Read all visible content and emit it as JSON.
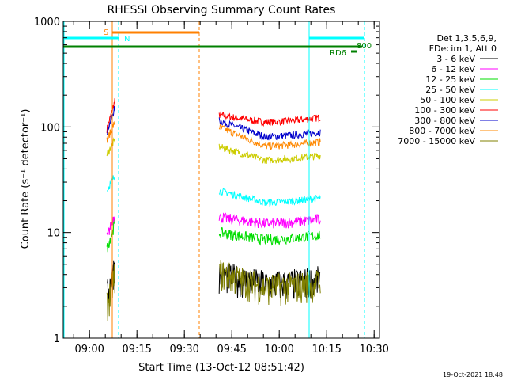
{
  "chart_data": {
    "type": "line",
    "title": "RHESSI Observing Summary Count Rates",
    "xlabel": "Start Time (13-Oct-12 08:51:42)",
    "ylabel": "Count Rate (s⁻¹ detector⁻¹)",
    "yscale": "log",
    "ylim": [
      1,
      1000
    ],
    "xlim": [
      "08:51:42",
      "10:31:42"
    ],
    "x_ticks": [
      "09:00",
      "09:15",
      "09:30",
      "09:45",
      "10:00",
      "10:15",
      "10:30"
    ],
    "y_ticks": [
      "1",
      "10",
      "100",
      "1000"
    ],
    "footer_date": "19-Oct-2021 18:48",
    "legend": {
      "header": [
        "Det 1,3,5,6,9,",
        "FDecim 1, Att 0"
      ],
      "entries": [
        {
          "label": "3 - 6 keV",
          "color": "#000000"
        },
        {
          "label": "6 - 12 keV",
          "color": "#ff00ff"
        },
        {
          "label": "12 - 25 keV",
          "color": "#00dd00"
        },
        {
          "label": "25 - 50 keV",
          "color": "#00ffff"
        },
        {
          "label": "50 - 100 keV",
          "color": "#cccc00"
        },
        {
          "label": "100 - 300 keV",
          "color": "#ff0000"
        },
        {
          "label": "300 - 800 keV",
          "color": "#0000cc"
        },
        {
          "label": "800 - 7000 keV",
          "color": "#ff8800"
        },
        {
          "label": "7000 - 15000 keV",
          "color": "#808000"
        }
      ]
    },
    "flags": [
      {
        "label": "S",
        "color": "#ff8000"
      },
      {
        "label": "N",
        "color": "#00ffff"
      },
      {
        "label": "800",
        "color": "#008000"
      },
      {
        "label": "RD6",
        "color": "#008000"
      }
    ],
    "segments": [
      {
        "start": "09:05:30",
        "end": "09:08:00"
      },
      {
        "start": "09:41:00",
        "end": "10:13:00"
      }
    ],
    "series": [
      {
        "color": "#ff0000",
        "values": [
          [
            95,
            175
          ],
          [
            130,
            110
          ]
        ]
      },
      {
        "color": "#0000cc",
        "values": [
          [
            90,
            150
          ],
          [
            115,
            80
          ]
        ]
      },
      {
        "color": "#ff8800",
        "values": [
          [
            75,
            110
          ],
          [
            100,
            65
          ]
        ]
      },
      {
        "color": "#cccc00",
        "values": [
          [
            55,
            75
          ],
          [
            65,
            48
          ]
        ]
      },
      {
        "color": "#00ffff",
        "values": [
          [
            25,
            35
          ],
          [
            25,
            19
          ]
        ]
      },
      {
        "color": "#ff00ff",
        "values": [
          [
            9,
            15
          ],
          [
            14,
            12
          ]
        ]
      },
      {
        "color": "#00dd00",
        "values": [
          [
            7,
            12
          ],
          [
            10,
            8.5
          ]
        ]
      },
      {
        "color": "#000000",
        "values": [
          [
            2.5,
            5
          ],
          [
            4,
            3.2
          ]
        ]
      },
      {
        "color": "#808000",
        "values": [
          [
            2,
            4
          ],
          [
            4.2,
            3
          ]
        ]
      }
    ]
  }
}
